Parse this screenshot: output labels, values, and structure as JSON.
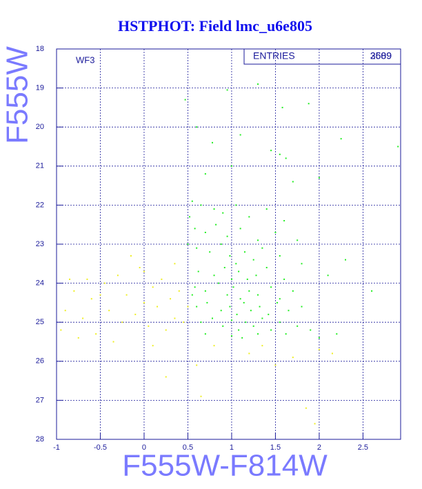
{
  "chart_data": {
    "type": "scatter",
    "title": "HSTPHOT: Field lmc_u6e805",
    "xlabel": "F555W-F814W",
    "ylabel": "F555W",
    "annotations": {
      "panel": "WF3",
      "entries_label": "ENTRIES",
      "entries": [
        "2609",
        "3589"
      ]
    },
    "xlim": [
      -1,
      2.93
    ],
    "ylim": [
      28,
      18
    ],
    "grid": true,
    "xticks": [
      -1,
      -0.5,
      0,
      0.5,
      1,
      1.5,
      2,
      2.5
    ],
    "yticks": [
      18,
      19,
      20,
      21,
      22,
      23,
      24,
      25,
      26,
      27,
      28
    ],
    "series": [
      {
        "color": "#22ee22",
        "x": [
          0.47,
          0.95,
          1.3,
          1.58,
          1.88,
          0.6,
          0.78,
          1.1,
          1.45,
          1.55,
          1.62,
          2.25,
          2.9,
          0.7,
          1.0,
          1.7,
          2.0,
          0.55,
          0.65,
          0.8,
          0.9,
          1.05,
          1.2,
          1.4,
          1.6,
          0.58,
          0.7,
          0.82,
          0.95,
          1.1,
          1.3,
          1.5,
          1.75,
          0.6,
          0.75,
          0.88,
          0.98,
          1.05,
          1.15,
          1.25,
          1.35,
          1.55,
          1.8,
          2.3,
          0.62,
          0.8,
          0.92,
          1.0,
          1.08,
          1.18,
          1.28,
          1.4,
          1.6,
          2.1,
          0.58,
          0.7,
          0.85,
          0.95,
          1.02,
          1.1,
          1.2,
          1.3,
          1.45,
          1.55,
          1.7,
          0.6,
          0.72,
          0.88,
          0.98,
          1.06,
          1.14,
          1.22,
          1.32,
          1.42,
          1.52,
          1.65,
          1.8,
          2.6,
          0.65,
          0.78,
          0.9,
          1.0,
          1.08,
          1.16,
          1.25,
          1.35,
          1.45,
          1.55,
          1.62,
          1.75,
          1.9,
          2.0,
          2.2,
          1.0,
          1.12,
          1.3,
          0.7,
          0.55,
          0.5,
          0.52
        ],
        "y": [
          19.3,
          19.05,
          18.9,
          19.5,
          19.4,
          20.0,
          20.4,
          20.2,
          20.6,
          20.7,
          20.8,
          20.3,
          20.5,
          21.2,
          21.0,
          21.4,
          21.3,
          21.9,
          22.0,
          22.1,
          22.2,
          22.0,
          22.3,
          22.1,
          22.4,
          22.6,
          22.7,
          22.5,
          22.8,
          22.6,
          22.9,
          22.7,
          22.9,
          23.1,
          23.2,
          23.0,
          23.3,
          23.5,
          23.2,
          23.4,
          23.1,
          23.3,
          23.5,
          23.4,
          23.7,
          23.8,
          23.6,
          23.9,
          23.7,
          23.9,
          23.8,
          23.6,
          23.9,
          23.8,
          24.1,
          24.2,
          24.0,
          24.3,
          24.1,
          24.4,
          24.2,
          24.3,
          24.1,
          24.4,
          24.2,
          24.6,
          24.5,
          24.7,
          24.6,
          24.8,
          24.5,
          24.7,
          24.6,
          24.8,
          24.5,
          24.7,
          24.6,
          24.2,
          25.0,
          24.9,
          25.1,
          24.95,
          25.2,
          25.0,
          25.1,
          24.9,
          25.2,
          25.0,
          25.3,
          25.1,
          25.2,
          25.4,
          25.3,
          25.35,
          25.4,
          25.3,
          25.3,
          24.3,
          23.0,
          22.3
        ]
      },
      {
        "color": "#eeee22",
        "x": [
          -0.9,
          -0.95,
          -0.8,
          -0.7,
          -0.6,
          -0.55,
          -0.45,
          -0.4,
          -0.3,
          -0.25,
          -0.2,
          -0.1,
          -0.05,
          0.0,
          0.05,
          0.1,
          0.15,
          0.2,
          0.25,
          0.3,
          0.35,
          0.4,
          0.45,
          0.5,
          -0.65,
          -0.35,
          -0.15,
          0.1,
          0.25,
          0.65,
          -0.5,
          0.0,
          1.2,
          1.7,
          1.5,
          2.0,
          1.35,
          0.6,
          1.85,
          1.95,
          2.15,
          0.8,
          -0.85,
          0.35,
          -0.75
        ],
        "y": [
          24.7,
          25.2,
          24.2,
          24.9,
          24.4,
          25.3,
          24.0,
          24.7,
          23.8,
          25.0,
          24.3,
          24.8,
          23.6,
          24.5,
          25.1,
          24.1,
          24.6,
          23.9,
          25.2,
          24.4,
          24.9,
          24.2,
          25.0,
          24.6,
          23.9,
          25.5,
          23.3,
          25.6,
          26.4,
          26.9,
          24.3,
          23.7,
          25.8,
          25.9,
          26.1,
          25.7,
          25.6,
          26.1,
          27.2,
          27.6,
          25.8,
          25.6,
          23.9,
          23.5,
          25.4
        ]
      }
    ]
  }
}
